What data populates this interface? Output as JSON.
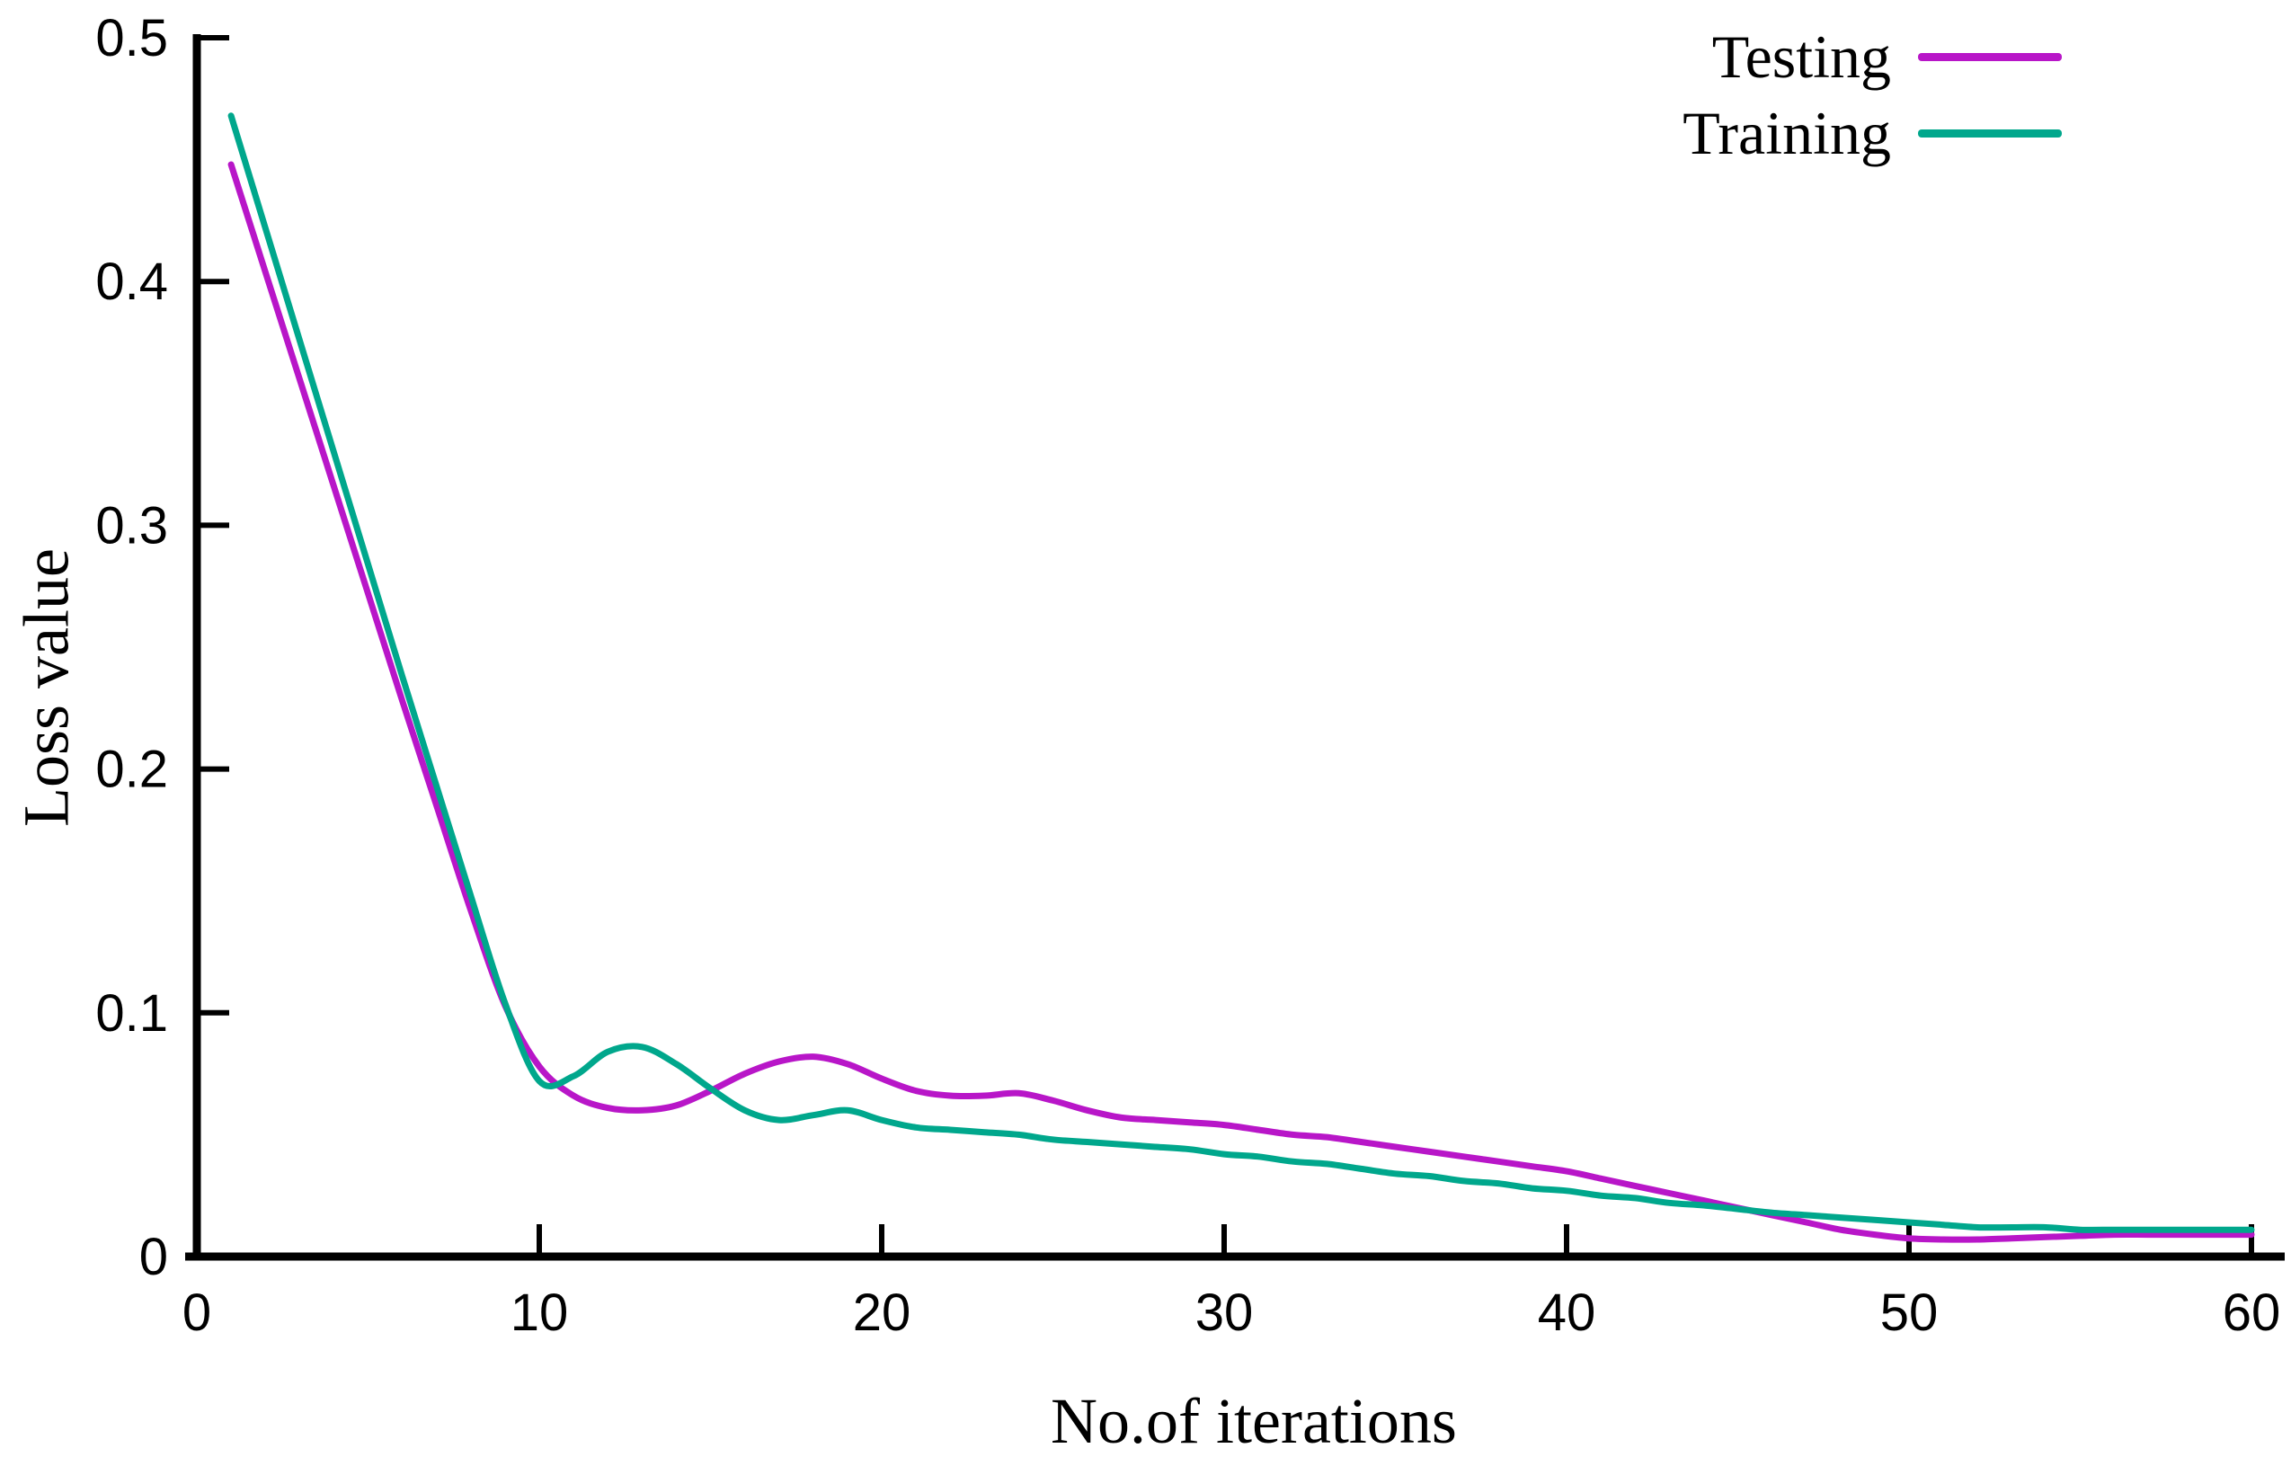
{
  "figure": {
    "background": "#ffffff",
    "axis_color": "#000000",
    "text_color": "#000000"
  },
  "chart_data": {
    "type": "line",
    "title": "",
    "xlabel": "No.of iterations",
    "ylabel": "Loss value",
    "xlim": [
      0,
      60
    ],
    "ylim": [
      0,
      0.5
    ],
    "x_ticks": [
      0,
      10,
      20,
      30,
      40,
      50,
      60
    ],
    "x_tick_labels": [
      "0",
      "10",
      "20",
      "30",
      "40",
      "50",
      "60"
    ],
    "y_ticks": [
      0,
      0.1,
      0.2,
      0.3,
      0.4,
      0.5
    ],
    "y_tick_labels": [
      "0",
      "0.1",
      "0.2",
      "0.3",
      "0.4",
      "0.5"
    ],
    "grid": false,
    "legend_position": "top-right",
    "x": [
      1,
      2,
      3,
      4,
      5,
      6,
      7,
      8,
      9,
      10,
      11,
      12,
      13,
      14,
      15,
      16,
      17,
      18,
      19,
      20,
      21,
      22,
      23,
      24,
      25,
      26,
      27,
      28,
      29,
      30,
      31,
      32,
      33,
      34,
      35,
      36,
      37,
      38,
      39,
      40,
      41,
      42,
      43,
      44,
      45,
      46,
      47,
      48,
      49,
      50,
      51,
      52,
      53,
      54,
      55,
      56,
      57,
      58,
      59,
      60
    ],
    "series": [
      {
        "name": "Testing",
        "color": "#b816c8",
        "values": [
          0.448,
          0.404,
          0.36,
          0.316,
          0.272,
          0.228,
          0.185,
          0.142,
          0.103,
          0.078,
          0.066,
          0.061,
          0.06,
          0.062,
          0.068,
          0.075,
          0.08,
          0.082,
          0.079,
          0.073,
          0.068,
          0.066,
          0.066,
          0.067,
          0.064,
          0.06,
          0.057,
          0.056,
          0.055,
          0.054,
          0.052,
          0.05,
          0.049,
          0.047,
          0.045,
          0.043,
          0.041,
          0.039,
          0.037,
          0.035,
          0.032,
          0.029,
          0.026,
          0.023,
          0.02,
          0.017,
          0.014,
          0.011,
          0.009,
          0.0075,
          0.007,
          0.007,
          0.0075,
          0.008,
          0.0085,
          0.009,
          0.009,
          0.009,
          0.009,
          0.009
        ]
      },
      {
        "name": "Training",
        "color": "#00a78c",
        "values": [
          0.468,
          0.422,
          0.376,
          0.33,
          0.284,
          0.238,
          0.193,
          0.148,
          0.104,
          0.072,
          0.074,
          0.084,
          0.086,
          0.079,
          0.069,
          0.06,
          0.056,
          0.058,
          0.06,
          0.056,
          0.053,
          0.052,
          0.051,
          0.05,
          0.048,
          0.047,
          0.046,
          0.045,
          0.044,
          0.042,
          0.041,
          0.039,
          0.038,
          0.036,
          0.034,
          0.033,
          0.031,
          0.03,
          0.028,
          0.027,
          0.025,
          0.024,
          0.022,
          0.021,
          0.0195,
          0.018,
          0.017,
          0.016,
          0.015,
          0.014,
          0.013,
          0.012,
          0.012,
          0.012,
          0.011,
          0.011,
          0.011,
          0.011,
          0.011,
          0.011
        ]
      }
    ]
  }
}
